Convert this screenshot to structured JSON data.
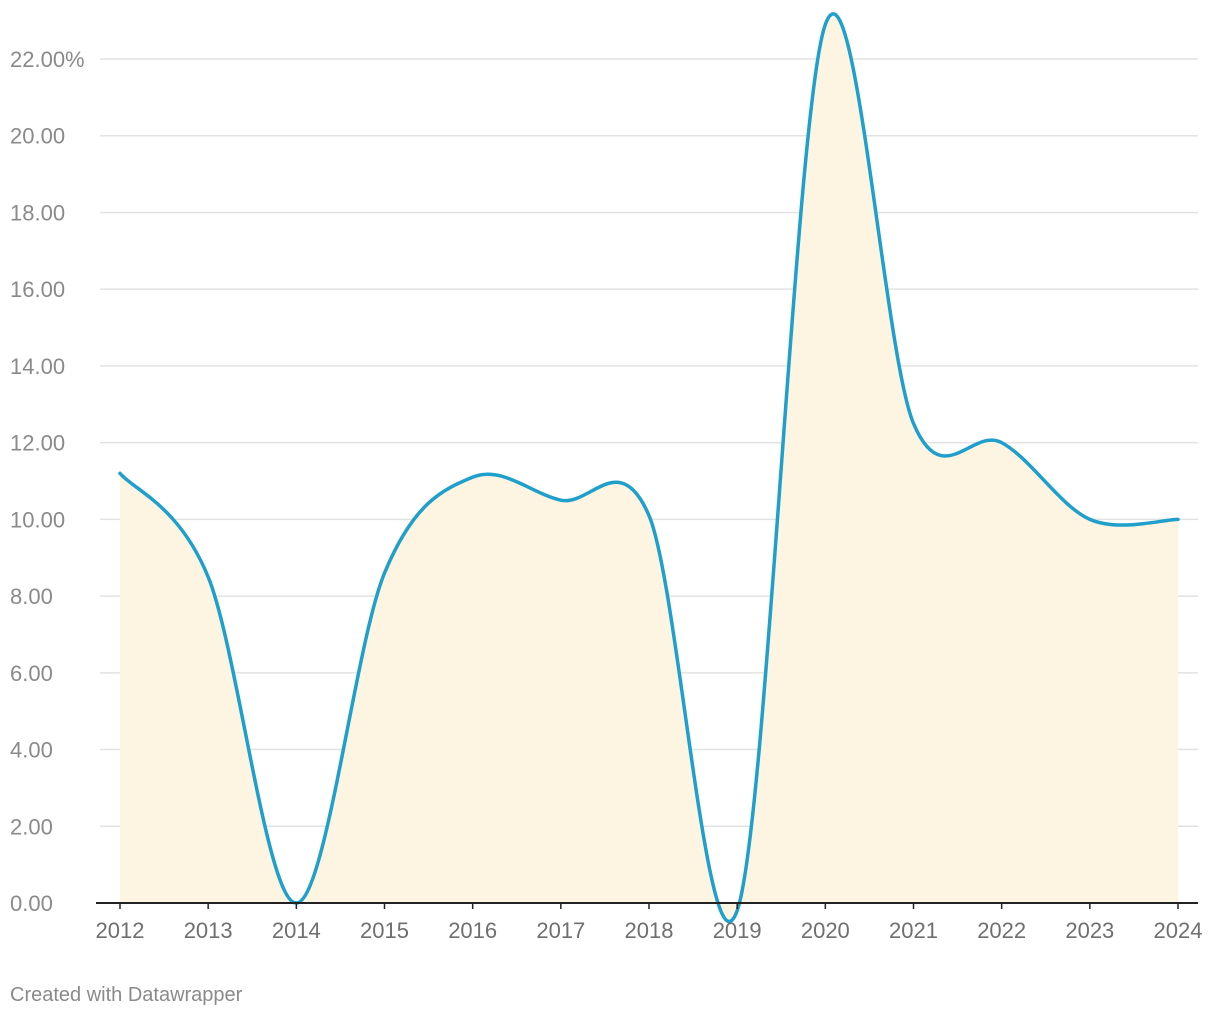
{
  "chart_data": {
    "type": "area",
    "x": [
      "2012",
      "2013",
      "2014",
      "2015",
      "2016",
      "2017",
      "2018",
      "2019",
      "2020",
      "2021",
      "2022",
      "2023",
      "2024"
    ],
    "series": [
      {
        "values": [
          11.2,
          8.5,
          0.0,
          8.6,
          11.1,
          10.5,
          10.1,
          -0.2,
          22.9,
          12.5,
          12.0,
          10.0,
          10.0
        ]
      }
    ],
    "y_ticks": [
      "0.00",
      "2.00",
      "4.00",
      "6.00",
      "8.00",
      "10.00",
      "12.00",
      "14.00",
      "16.00",
      "18.00",
      "20.00",
      "22.00%"
    ],
    "ylim": [
      0,
      22
    ],
    "grid": true,
    "line_color": "#1f9fcb",
    "fill_color": "#fdf5e1"
  },
  "footer": {
    "credit": "Created with Datawrapper"
  }
}
